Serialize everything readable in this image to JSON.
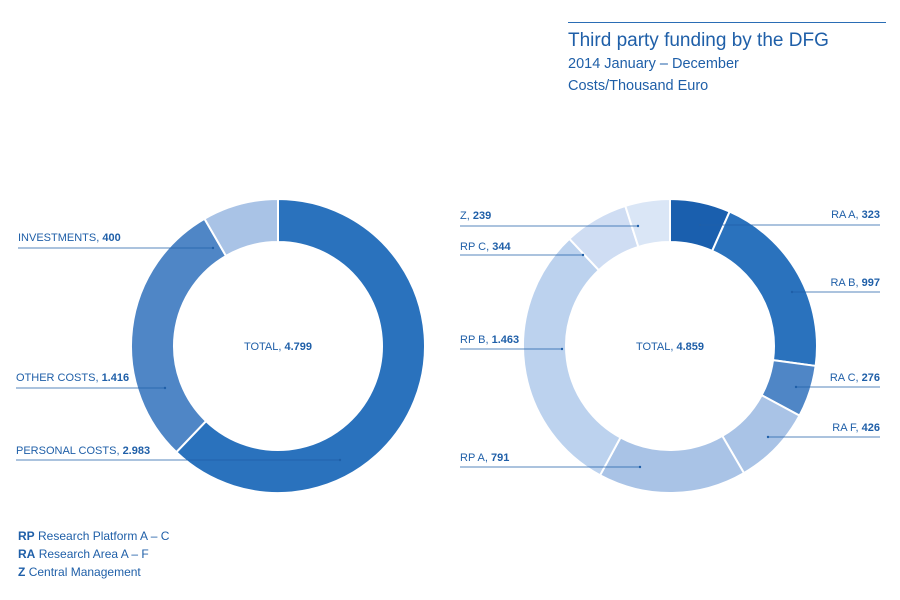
{
  "header": {
    "title": "Third party funding by the DFG",
    "period": "2014 January – December",
    "unit": "Costs/Thousand Euro"
  },
  "colors": {
    "accent": "#1f5fa8",
    "dark": "#1a5fae",
    "mid": "#2a72bd",
    "medium": "#4f86c6",
    "light": "#a9c3e6",
    "lighter": "#bcd2ee",
    "lightest": "#dae6f6"
  },
  "chart_data": [
    {
      "type": "pie",
      "variant": "donut",
      "center_label": "TOTAL, 4.799",
      "slices": [
        {
          "label": "PERSONAL COSTS, 2.983",
          "name": "PERSONAL COSTS",
          "value": 2983,
          "color": "#2a72bd"
        },
        {
          "label": "OTHER COSTS, 1.416",
          "name": "OTHER COSTS",
          "value": 1416,
          "color": "#4f86c6"
        },
        {
          "label": "INVESTMENTS, 400",
          "name": "INVESTMENTS",
          "value": 400,
          "color": "#a9c3e6"
        }
      ]
    },
    {
      "type": "pie",
      "variant": "donut",
      "center_label": "TOTAL, 4.859",
      "slices": [
        {
          "label": "RA A, 323",
          "name": "RA A",
          "value": 323,
          "color": "#1a5fae"
        },
        {
          "label": "RA B, 997",
          "name": "RA B",
          "value": 997,
          "color": "#2a72bd"
        },
        {
          "label": "RA C, 276",
          "name": "RA C",
          "value": 276,
          "color": "#4f86c6"
        },
        {
          "label": "RA F, 426",
          "name": "RA F",
          "value": 426,
          "color": "#a9c3e6"
        },
        {
          "label": "RP A, 791",
          "name": "RP A",
          "value": 791,
          "color": "#a9c3e6"
        },
        {
          "label": "RP B, 1.463",
          "name": "RP B",
          "value": 1463,
          "color": "#bcd2ee"
        },
        {
          "label": "RP C, 344",
          "name": "RP C",
          "value": 344,
          "color": "#cfddf3"
        },
        {
          "label": "Z, 239",
          "name": "Z",
          "value": 239,
          "color": "#dae6f6"
        }
      ]
    }
  ],
  "legend": [
    {
      "abbr": "RP",
      "text": "Research Platform A – C"
    },
    {
      "abbr": "RA",
      "text": "Research Area A – F"
    },
    {
      "abbr": "Z",
      "text": "Central Management"
    }
  ]
}
